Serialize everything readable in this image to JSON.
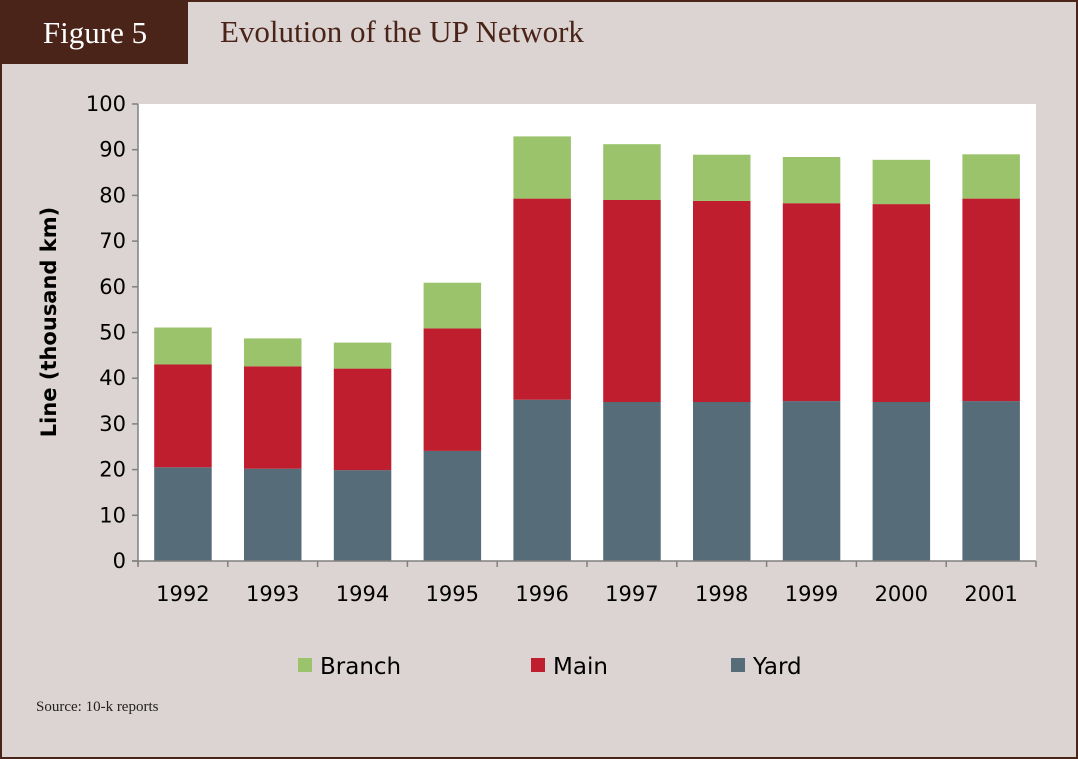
{
  "figure": {
    "label": "Figure 5",
    "title": "Evolution of the UP Network"
  },
  "source": "Source: 10-k reports",
  "chart_data": {
    "type": "bar",
    "stacked": true,
    "categories": [
      "1992",
      "1993",
      "1994",
      "1995",
      "1996",
      "1997",
      "1998",
      "1999",
      "2000",
      "2001"
    ],
    "series": [
      {
        "name": "Yard",
        "color": "#566d79",
        "values": [
          20.5,
          20.2,
          19.9,
          24.1,
          35.3,
          34.8,
          34.8,
          35.0,
          34.8,
          35.0
        ]
      },
      {
        "name": "Main",
        "color": "#be1e2d",
        "values": [
          22.5,
          22.4,
          22.2,
          26.8,
          44.0,
          44.2,
          44.0,
          43.3,
          43.3,
          44.3
        ]
      },
      {
        "name": "Branch",
        "color": "#9bc36b",
        "values": [
          8.1,
          6.1,
          5.7,
          10.0,
          13.6,
          12.2,
          10.1,
          10.1,
          9.7,
          9.7
        ]
      }
    ],
    "legend_order": [
      "Branch",
      "Main",
      "Yard"
    ],
    "legend_position": "bottom",
    "ylabel": "Line (thousand km)",
    "xlabel": "",
    "ylim": [
      0,
      100
    ],
    "yticks": [
      0,
      10,
      20,
      30,
      40,
      50,
      60,
      70,
      80,
      90,
      100
    ],
    "grid": false
  }
}
